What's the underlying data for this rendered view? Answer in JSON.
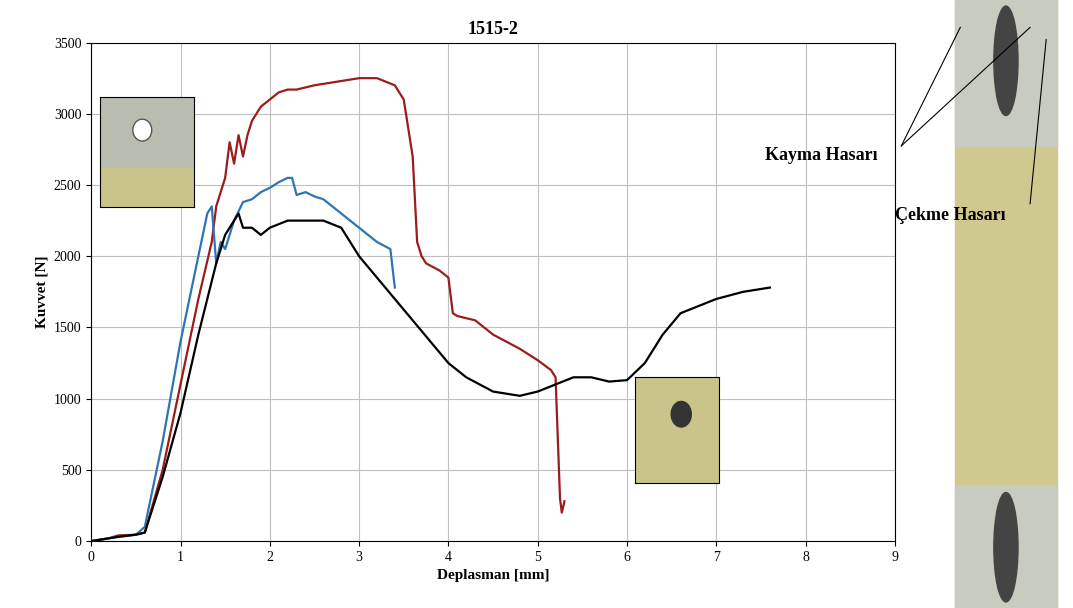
{
  "chart_data": {
    "type": "line",
    "title": "1515-2",
    "x_label": "Deplasman [mm]",
    "y_label": "Kuvvet [N]",
    "xlim": [
      0,
      9
    ],
    "xticks": [
      0,
      1,
      2,
      3,
      4,
      5,
      6,
      7,
      8,
      9
    ],
    "ylim": [
      0,
      3500
    ],
    "yticks": [
      0,
      500,
      1000,
      1500,
      2000,
      2500,
      3000,
      3500
    ],
    "grid": true,
    "series": [
      {
        "color": "#9b1c1c",
        "x": [
          0,
          0.2,
          0.3,
          0.5,
          0.6,
          0.8,
          1.0,
          1.2,
          1.35,
          1.4,
          1.45,
          1.5,
          1.55,
          1.6,
          1.65,
          1.7,
          1.75,
          1.8,
          1.9,
          2.0,
          2.1,
          2.2,
          2.3,
          2.5,
          2.7,
          3.0,
          3.2,
          3.4,
          3.5,
          3.6,
          3.65,
          3.7,
          3.75,
          3.9,
          4.0,
          4.05,
          4.1,
          4.3,
          4.5,
          4.8,
          5.0,
          5.15,
          5.2,
          5.25,
          5.27,
          5.3
        ],
        "values": [
          0,
          20,
          40,
          45,
          60,
          500,
          1100,
          1700,
          2100,
          2350,
          2450,
          2550,
          2800,
          2650,
          2850,
          2700,
          2850,
          2950,
          3050,
          3100,
          3150,
          3170,
          3170,
          3200,
          3220,
          3250,
          3250,
          3200,
          3100,
          2700,
          2100,
          2000,
          1950,
          1900,
          1850,
          1600,
          1580,
          1550,
          1450,
          1350,
          1270,
          1200,
          1150,
          300,
          200,
          280
        ]
      },
      {
        "color": "#2e75b6",
        "x": [
          0,
          0.3,
          0.5,
          0.6,
          0.8,
          1.0,
          1.2,
          1.3,
          1.35,
          1.4,
          1.45,
          1.5,
          1.6,
          1.7,
          1.8,
          1.9,
          2.0,
          2.1,
          2.2,
          2.25,
          2.3,
          2.4,
          2.5,
          2.6,
          2.8,
          3.0,
          3.2,
          3.35,
          3.4
        ],
        "values": [
          0,
          30,
          45,
          100,
          700,
          1400,
          2000,
          2300,
          2350,
          1950,
          2100,
          2050,
          2250,
          2380,
          2400,
          2450,
          2480,
          2520,
          2550,
          2550,
          2430,
          2450,
          2420,
          2400,
          2300,
          2200,
          2100,
          2050,
          1780
        ]
      },
      {
        "color": "#000000",
        "x": [
          0,
          0.3,
          0.5,
          0.6,
          0.8,
          1.0,
          1.2,
          1.4,
          1.5,
          1.6,
          1.65,
          1.7,
          1.8,
          1.9,
          2.0,
          2.2,
          2.4,
          2.6,
          2.8,
          3.0,
          3.2,
          3.4,
          3.6,
          3.8,
          4.0,
          4.2,
          4.5,
          4.8,
          5.0,
          5.2,
          5.4,
          5.6,
          5.8,
          6.0,
          6.2,
          6.4,
          6.6,
          6.8,
          7.0,
          7.3,
          7.6
        ],
        "values": [
          0,
          30,
          45,
          60,
          450,
          900,
          1450,
          1950,
          2150,
          2250,
          2300,
          2200,
          2200,
          2150,
          2200,
          2250,
          2250,
          2250,
          2200,
          2000,
          1850,
          1700,
          1550,
          1400,
          1250,
          1150,
          1050,
          1020,
          1050,
          1100,
          1150,
          1150,
          1120,
          1130,
          1250,
          1450,
          1600,
          1650,
          1700,
          1750,
          1780
        ]
      }
    ],
    "annotations": [
      "Kayma Hasarı",
      "Çekme Hasarı"
    ]
  }
}
